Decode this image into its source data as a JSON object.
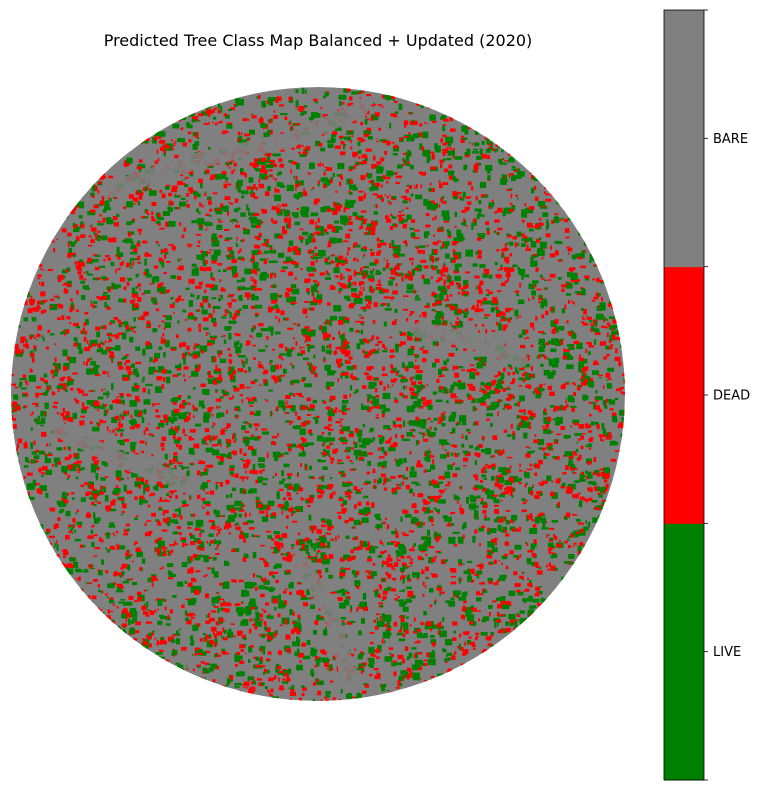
{
  "chart_data": {
    "type": "heatmap",
    "title": "Predicted Tree Class Map Balanced + Updated (2020)",
    "xlabel": "",
    "ylabel": "",
    "axes_visible": false,
    "extent_shape": "circle",
    "classes": [
      {
        "value": 0,
        "label": "LIVE",
        "color": "#008000"
      },
      {
        "value": 1,
        "label": "DEAD",
        "color": "#ff0000"
      },
      {
        "value": 2,
        "label": "BARE",
        "color": "#808080"
      }
    ],
    "approx_class_fraction": {
      "LIVE": 0.15,
      "DEAD": 0.22,
      "BARE": 0.63
    },
    "colorbar": {
      "placement": "right",
      "tick_labels": [
        "LIVE",
        "DEAD",
        "BARE"
      ]
    }
  }
}
